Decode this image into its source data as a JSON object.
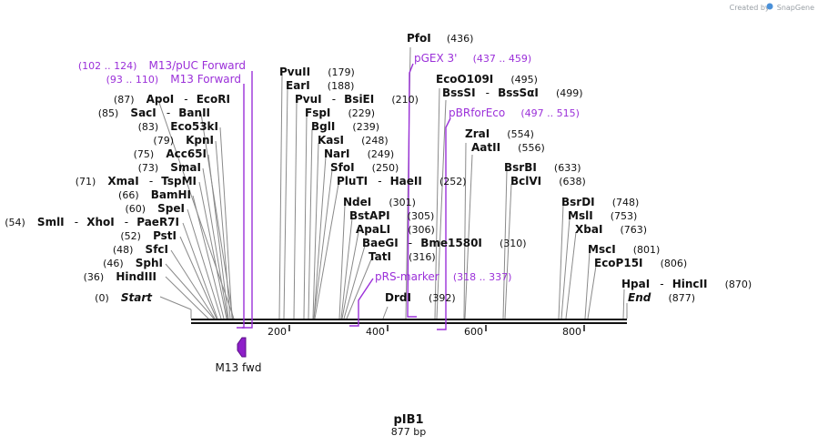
{
  "title": "pIB1",
  "subtitle": "877 bp",
  "credit": {
    "prefix": "Created by",
    "brand": "SnapGene"
  },
  "colors": {
    "primer": "#9b30d9",
    "text": "#111111",
    "backbone": "#111111",
    "leader": "#888888"
  },
  "ticks": [
    "200",
    "400",
    "600",
    "800"
  ],
  "feature": {
    "name": "M13 fwd",
    "icon": "arrow-left-icon"
  },
  "sites": [
    {
      "id": "pfoi",
      "parts": [
        "PfoI"
      ],
      "pos": "(436)"
    },
    {
      "id": "pvuii",
      "parts": [
        "PvuII"
      ],
      "pos": "(179)"
    },
    {
      "id": "eco0109i",
      "parts": [
        "EcoO109I"
      ],
      "pos": "(495)"
    },
    {
      "id": "eari",
      "parts": [
        "EarI"
      ],
      "pos": "(188)"
    },
    {
      "id": "apoi",
      "parts": [
        "ApoI",
        "EcoRI"
      ],
      "pos": "(87)"
    },
    {
      "id": "bsssi",
      "parts": [
        "BssSI",
        "BssSαI"
      ],
      "pos": "(499)"
    },
    {
      "id": "pvui",
      "parts": [
        "PvuI",
        "BsiEI"
      ],
      "pos": "(210)"
    },
    {
      "id": "saci",
      "parts": [
        "SacI",
        "BanII"
      ],
      "pos": "(85)"
    },
    {
      "id": "fspi",
      "parts": [
        "FspI"
      ],
      "pos": "(229)"
    },
    {
      "id": "eco53ki",
      "parts": [
        "Eco53kI"
      ],
      "pos": "(83)"
    },
    {
      "id": "bgli",
      "parts": [
        "BglI"
      ],
      "pos": "(239)"
    },
    {
      "id": "zrai",
      "parts": [
        "ZraI"
      ],
      "pos": "(554)"
    },
    {
      "id": "kpni",
      "parts": [
        "KpnI"
      ],
      "pos": "(79)"
    },
    {
      "id": "kasi",
      "parts": [
        "KasI"
      ],
      "pos": "(248)"
    },
    {
      "id": "aatii",
      "parts": [
        "AatII"
      ],
      "pos": "(556)"
    },
    {
      "id": "acc65i",
      "parts": [
        "Acc65I"
      ],
      "pos": "(75)"
    },
    {
      "id": "nari",
      "parts": [
        "NarI"
      ],
      "pos": "(249)"
    },
    {
      "id": "smai",
      "parts": [
        "SmaI"
      ],
      "pos": "(73)"
    },
    {
      "id": "sfoi",
      "parts": [
        "SfoI"
      ],
      "pos": "(250)"
    },
    {
      "id": "bsrbi",
      "parts": [
        "BsrBI"
      ],
      "pos": "(633)"
    },
    {
      "id": "xmai",
      "parts": [
        "XmaI",
        "TspMI"
      ],
      "pos": "(71)"
    },
    {
      "id": "plutI",
      "parts": [
        "PluTI",
        "HaeII"
      ],
      "pos": "(252)"
    },
    {
      "id": "bclvi",
      "parts": [
        "BclVI"
      ],
      "pos": "(638)"
    },
    {
      "id": "bamhi",
      "parts": [
        "BamHI"
      ],
      "pos": "(66)"
    },
    {
      "id": "ndei",
      "parts": [
        "NdeI"
      ],
      "pos": "(301)"
    },
    {
      "id": "bsrdi",
      "parts": [
        "BsrDI"
      ],
      "pos": "(748)"
    },
    {
      "id": "spei",
      "parts": [
        "SpeI"
      ],
      "pos": "(60)"
    },
    {
      "id": "bstapi",
      "parts": [
        "BstAPI"
      ],
      "pos": "(305)"
    },
    {
      "id": "msli",
      "parts": [
        "MslI"
      ],
      "pos": "(753)"
    },
    {
      "id": "smli",
      "parts": [
        "SmlI",
        "XhoI",
        "PaeR7I"
      ],
      "pos": "(54)"
    },
    {
      "id": "apali",
      "parts": [
        "ApaLI"
      ],
      "pos": "(306)"
    },
    {
      "id": "xbai",
      "parts": [
        "XbaI"
      ],
      "pos": "(763)"
    },
    {
      "id": "psti",
      "parts": [
        "PstI"
      ],
      "pos": "(52)"
    },
    {
      "id": "baegi",
      "parts": [
        "BaeGI",
        "Bme1580I"
      ],
      "pos": "(310)"
    },
    {
      "id": "sfci",
      "parts": [
        "SfcI"
      ],
      "pos": "(48)"
    },
    {
      "id": "msci",
      "parts": [
        "MscI"
      ],
      "pos": "(801)"
    },
    {
      "id": "tati",
      "parts": [
        "TatI"
      ],
      "pos": "(316)"
    },
    {
      "id": "sphi",
      "parts": [
        "SphI"
      ],
      "pos": "(46)"
    },
    {
      "id": "ecop15i",
      "parts": [
        "EcoP15I"
      ],
      "pos": "(806)"
    },
    {
      "id": "hindiii",
      "parts": [
        "HindIII"
      ],
      "pos": "(36)"
    },
    {
      "id": "hpai",
      "parts": [
        "HpaI",
        "HincII"
      ],
      "pos": "(870)"
    },
    {
      "id": "start",
      "parts": [
        "Start"
      ],
      "pos": "(0)"
    },
    {
      "id": "dridi",
      "parts": [
        "DrdI"
      ],
      "pos": "(392)"
    },
    {
      "id": "end",
      "parts": [
        "End"
      ],
      "pos": "(877)"
    }
  ],
  "primers": [
    {
      "id": "m13puc",
      "pos": "(102 .. 124)",
      "name": "M13/pUC Forward"
    },
    {
      "id": "m13fwd",
      "pos": "(93 .. 110)",
      "name": "M13 Forward"
    },
    {
      "id": "pgex3",
      "name": "pGEX 3'",
      "pos": "(437 .. 459)"
    },
    {
      "id": "pbrforeco",
      "name": "pBRforEco",
      "pos": "(497 .. 515)"
    },
    {
      "id": "prsmarker",
      "name": "pRS-marker",
      "pos": "(318 .. 337)"
    }
  ]
}
